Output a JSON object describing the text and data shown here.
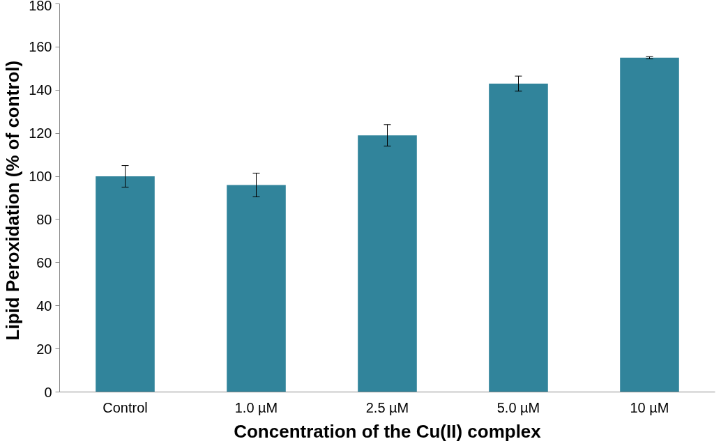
{
  "chart_data": {
    "type": "bar",
    "xlabel": "Concentration of the Cu(II) complex",
    "ylabel": "Lipid Peroxidation (%  of control)",
    "categories": [
      "Control",
      "1.0 µM",
      "2.5 µM",
      "5.0 µM",
      "10 µM"
    ],
    "values": [
      100,
      96,
      119,
      143,
      155
    ],
    "errors": [
      5,
      5.5,
      5,
      3.5,
      0.5
    ],
    "color": "#31849b",
    "ylim": [
      0,
      180
    ],
    "yticks": [
      0,
      20,
      40,
      60,
      80,
      100,
      120,
      140,
      160,
      180
    ],
    "grid": false
  }
}
